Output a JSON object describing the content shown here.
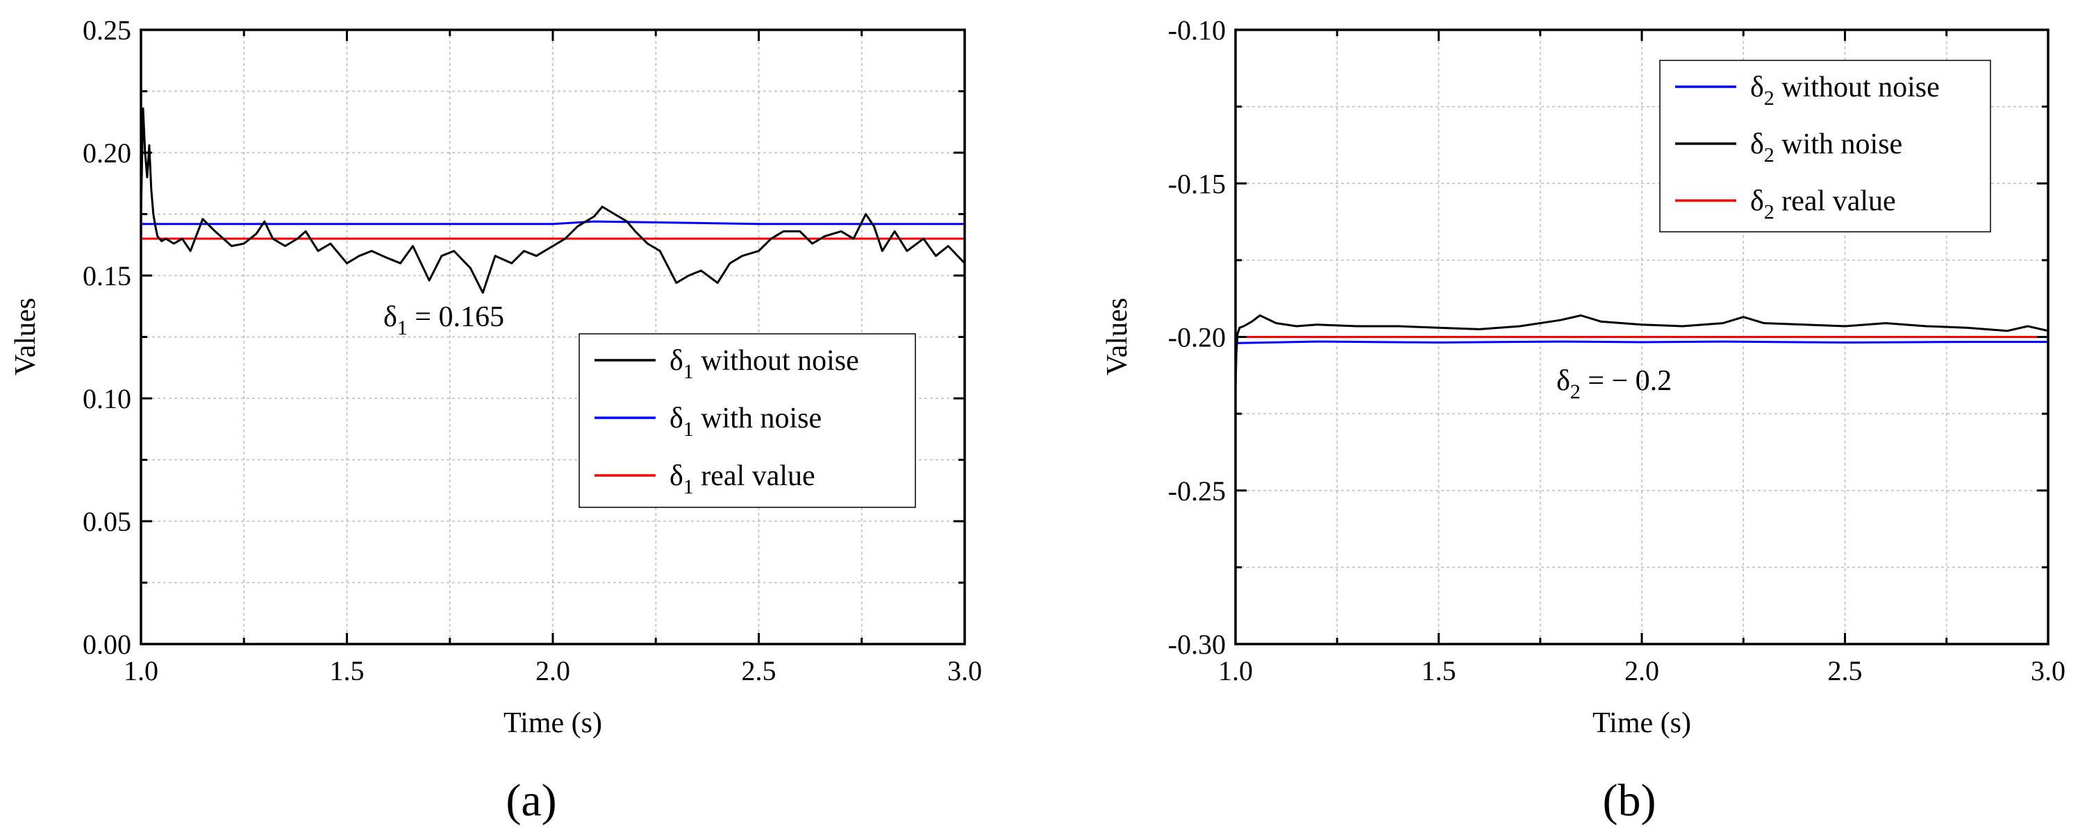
{
  "chart_data": [
    {
      "type": "line",
      "panel_label": "(a)",
      "xlabel": "Time (s)",
      "ylabel": "Values",
      "xlim": [
        1.0,
        3.0
      ],
      "ylim": [
        0.0,
        0.25
      ],
      "x_ticks": [
        "1.0",
        "1.5",
        "2.0",
        "2.5",
        "3.0"
      ],
      "y_ticks": [
        "0.00",
        "0.05",
        "0.10",
        "0.15",
        "0.20",
        "0.25"
      ],
      "grid": true,
      "legend_position": "center-right",
      "series": [
        {
          "name_symbol": "δ",
          "name_sub": "1",
          "name_text": " without noise",
          "color": "#000000",
          "x": [
            1.0,
            1.005,
            1.01,
            1.015,
            1.02,
            1.025,
            1.03,
            1.035,
            1.04,
            1.05,
            1.06,
            1.08,
            1.1,
            1.12,
            1.15,
            1.18,
            1.2,
            1.22,
            1.25,
            1.28,
            1.3,
            1.32,
            1.35,
            1.38,
            1.4,
            1.43,
            1.46,
            1.5,
            1.53,
            1.56,
            1.6,
            1.63,
            1.66,
            1.7,
            1.73,
            1.76,
            1.8,
            1.83,
            1.86,
            1.9,
            1.93,
            1.96,
            2.0,
            2.03,
            2.06,
            2.1,
            2.12,
            2.15,
            2.18,
            2.2,
            2.23,
            2.26,
            2.3,
            2.33,
            2.36,
            2.4,
            2.43,
            2.46,
            2.5,
            2.53,
            2.56,
            2.6,
            2.63,
            2.66,
            2.7,
            2.73,
            2.76,
            2.78,
            2.8,
            2.83,
            2.86,
            2.9,
            2.93,
            2.96,
            3.0
          ],
          "y": [
            0.175,
            0.218,
            0.2,
            0.19,
            0.203,
            0.185,
            0.175,
            0.17,
            0.166,
            0.164,
            0.165,
            0.163,
            0.165,
            0.16,
            0.173,
            0.168,
            0.165,
            0.162,
            0.163,
            0.167,
            0.172,
            0.165,
            0.162,
            0.165,
            0.168,
            0.16,
            0.163,
            0.155,
            0.158,
            0.16,
            0.157,
            0.155,
            0.162,
            0.148,
            0.158,
            0.16,
            0.153,
            0.143,
            0.158,
            0.155,
            0.16,
            0.158,
            0.162,
            0.165,
            0.17,
            0.174,
            0.178,
            0.175,
            0.172,
            0.168,
            0.163,
            0.16,
            0.147,
            0.15,
            0.152,
            0.147,
            0.155,
            0.158,
            0.16,
            0.165,
            0.168,
            0.168,
            0.163,
            0.166,
            0.168,
            0.165,
            0.175,
            0.17,
            0.16,
            0.168,
            0.16,
            0.165,
            0.158,
            0.162,
            0.155
          ]
        },
        {
          "name_symbol": "δ",
          "name_sub": "1",
          "name_text": " with noise",
          "color": "#0000ff",
          "x": [
            1.0,
            1.5,
            2.0,
            2.1,
            2.5,
            3.0
          ],
          "y": [
            0.171,
            0.171,
            0.171,
            0.172,
            0.171,
            0.171
          ]
        },
        {
          "name_symbol": "δ",
          "name_sub": "1",
          "name_text": " real value",
          "color": "#ff0000",
          "x": [
            1.0,
            3.0
          ],
          "y": [
            0.165,
            0.165
          ]
        }
      ],
      "annotation": {
        "symbol": "δ",
        "sub": "1",
        "text": " =  0.165"
      }
    },
    {
      "type": "line",
      "panel_label": "(b)",
      "xlabel": "Time  (s)",
      "ylabel": "Values",
      "xlim": [
        1.0,
        3.0
      ],
      "ylim": [
        -0.3,
        -0.1
      ],
      "x_ticks": [
        "1.0",
        "1.5",
        "2.0",
        "2.5",
        "3.0"
      ],
      "y_ticks": [
        "-0.30",
        "-0.25",
        "-0.20",
        "-0.15",
        "-0.10"
      ],
      "grid": true,
      "legend_position": "top-right",
      "series": [
        {
          "name_symbol": "δ",
          "name_sub": "2",
          "name_text": " without noise",
          "color": "#0000ff",
          "x": [
            1.0,
            1.2,
            1.5,
            1.8,
            2.0,
            2.2,
            2.5,
            2.8,
            3.0
          ],
          "y": [
            -0.202,
            -0.2015,
            -0.2018,
            -0.2015,
            -0.2017,
            -0.2015,
            -0.2018,
            -0.2016,
            -0.2016
          ]
        },
        {
          "name_symbol": "δ",
          "name_sub": "2",
          "name_text": " with noise",
          "color": "#000000",
          "x": [
            1.0,
            1.002,
            1.005,
            1.01,
            1.02,
            1.04,
            1.06,
            1.1,
            1.15,
            1.2,
            1.3,
            1.4,
            1.5,
            1.6,
            1.7,
            1.8,
            1.85,
            1.9,
            2.0,
            2.1,
            2.2,
            2.25,
            2.3,
            2.4,
            2.5,
            2.6,
            2.7,
            2.8,
            2.9,
            2.95,
            3.0
          ],
          "y": [
            -0.216,
            -0.205,
            -0.199,
            -0.197,
            -0.1965,
            -0.195,
            -0.193,
            -0.1955,
            -0.1965,
            -0.196,
            -0.1965,
            -0.1965,
            -0.197,
            -0.1975,
            -0.1965,
            -0.1945,
            -0.193,
            -0.195,
            -0.196,
            -0.1965,
            -0.1955,
            -0.1935,
            -0.1955,
            -0.196,
            -0.1965,
            -0.1955,
            -0.1965,
            -0.197,
            -0.198,
            -0.1965,
            -0.198
          ]
        },
        {
          "name_symbol": "δ",
          "name_sub": "2",
          "name_text": " real value",
          "color": "#ff0000",
          "x": [
            1.0,
            3.0
          ],
          "y": [
            -0.2,
            -0.2
          ]
        }
      ],
      "annotation": {
        "symbol": "δ",
        "sub": "2",
        "text": " = − 0.2"
      }
    }
  ]
}
